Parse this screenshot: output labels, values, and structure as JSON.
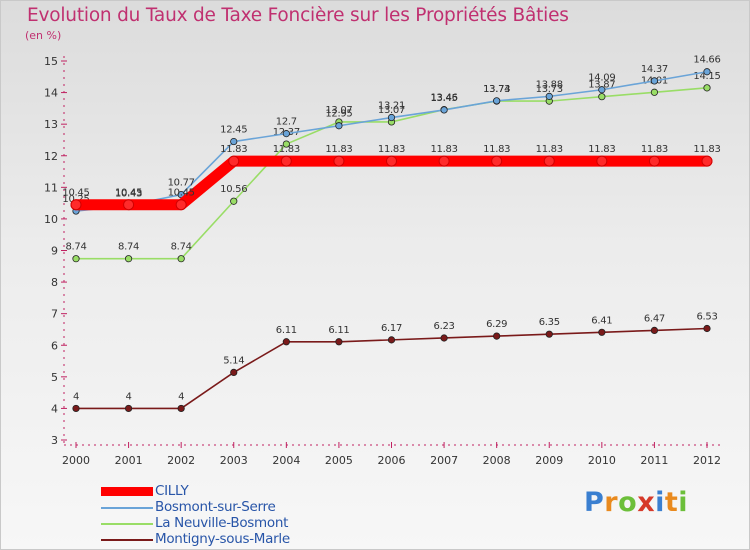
{
  "header": {
    "title": "Evolution du Taux de Taxe Foncière sur les Propriétés Bâties",
    "subtitle": "(en %)"
  },
  "logo": {
    "text": "Proxiti",
    "letters": [
      "P",
      "r",
      "o",
      "x",
      "i",
      "t",
      "i"
    ]
  },
  "chart_data": {
    "type": "line",
    "title": "Evolution du Taux de Taxe Foncière sur les Propriétés Bâties",
    "ylabel": "(en %)",
    "xlabel": "",
    "ylim": [
      3,
      15
    ],
    "yticks": [
      3,
      4,
      5,
      6,
      7,
      8,
      9,
      10,
      11,
      12,
      13,
      14,
      15
    ],
    "categories": [
      "2000",
      "2001",
      "2002",
      "2003",
      "2004",
      "2005",
      "2006",
      "2007",
      "2008",
      "2009",
      "2010",
      "2011",
      "2012"
    ],
    "grid": false,
    "legend_position": "bottom-left",
    "series": [
      {
        "name": "CILLY",
        "color": "#ff0000",
        "values": [
          10.45,
          10.45,
          10.45,
          11.83,
          11.83,
          11.83,
          11.83,
          11.83,
          11.83,
          11.83,
          11.83,
          11.83,
          11.83
        ],
        "labels": [
          "10.45",
          "10.45",
          "10.45",
          "11.83",
          "11.83",
          "11.83",
          "11.83",
          "11.83",
          "11.83",
          "11.83",
          "11.83",
          "11.83",
          "11.83"
        ]
      },
      {
        "name": "Bosmont-sur-Serre",
        "color": "#6aa4d8",
        "values": [
          10.25,
          10.43,
          10.77,
          12.45,
          12.7,
          12.95,
          13.21,
          13.45,
          13.74,
          13.88,
          14.09,
          14.37,
          14.66
        ],
        "labels": [
          "10.25",
          "10.43",
          "10.77",
          "12.45",
          "12.7",
          "12.95",
          "13.21",
          "13.45",
          "13.74",
          "13.88",
          "14.09",
          "14.37",
          "14.66"
        ]
      },
      {
        "name": "La Neuville-Bosmont",
        "color": "#99dd66",
        "values": [
          8.74,
          8.74,
          8.74,
          10.56,
          12.37,
          13.07,
          13.07,
          13.46,
          13.73,
          13.73,
          13.87,
          14.01,
          14.15
        ],
        "labels": [
          "8.74",
          "8.74",
          "8.74",
          "10.56",
          "12.37",
          "13.07",
          "13.07",
          "13.46",
          "13.73",
          "13.73",
          "13.87",
          "14.01",
          "14.15"
        ]
      },
      {
        "name": "Montigny-sous-Marle",
        "color": "#7a1a1a",
        "values": [
          4,
          4,
          4,
          5.14,
          6.11,
          6.11,
          6.17,
          6.23,
          6.29,
          6.35,
          6.41,
          6.47,
          6.53
        ],
        "labels": [
          "4",
          "4",
          "4",
          "5.14",
          "6.11",
          "6.11",
          "6.17",
          "6.23",
          "6.29",
          "6.35",
          "6.41",
          "6.47",
          "6.53"
        ]
      }
    ]
  }
}
